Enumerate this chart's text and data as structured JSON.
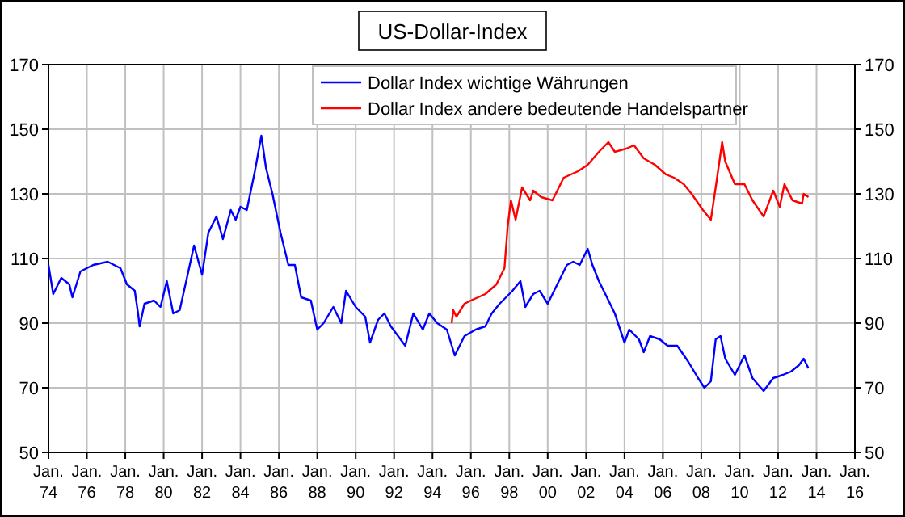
{
  "chart_data": {
    "type": "line",
    "title": "US-Dollar-Index",
    "xlim": [
      "1974-01",
      "2016-01"
    ],
    "xticks": [
      {
        "value": "1974-01",
        "label": "Jan. 74"
      },
      {
        "value": "1976-01",
        "label": "Jan. 76"
      },
      {
        "value": "1978-01",
        "label": "Jan. 78"
      },
      {
        "value": "1980-01",
        "label": "Jan. 80"
      },
      {
        "value": "1982-01",
        "label": "Jan. 82"
      },
      {
        "value": "1984-01",
        "label": "Jan. 84"
      },
      {
        "value": "1986-01",
        "label": "Jan. 86"
      },
      {
        "value": "1988-01",
        "label": "Jan. 88"
      },
      {
        "value": "1990-01",
        "label": "Jan. 90"
      },
      {
        "value": "1992-01",
        "label": "Jan. 92"
      },
      {
        "value": "1994-01",
        "label": "Jan. 94"
      },
      {
        "value": "1996-01",
        "label": "Jan. 96"
      },
      {
        "value": "1998-01",
        "label": "Jan. 98"
      },
      {
        "value": "2000-01",
        "label": "Jan. 00"
      },
      {
        "value": "2002-01",
        "label": "Jan. 02"
      },
      {
        "value": "2004-01",
        "label": "Jan. 04"
      },
      {
        "value": "2006-01",
        "label": "Jan. 06"
      },
      {
        "value": "2008-01",
        "label": "Jan. 08"
      },
      {
        "value": "2010-01",
        "label": "Jan. 10"
      },
      {
        "value": "2012-01",
        "label": "Jan. 12"
      },
      {
        "value": "2014-01",
        "label": "Jan. 14"
      },
      {
        "value": "2016-01",
        "label": "Jan. 16"
      }
    ],
    "ylim": [
      50,
      170
    ],
    "yticks": [
      50,
      70,
      90,
      110,
      130,
      150,
      170
    ],
    "y2lim": [
      50,
      170
    ],
    "y2ticks": [
      50,
      70,
      90,
      110,
      130,
      150,
      170
    ],
    "grid": true,
    "legend": "top",
    "marker": "none",
    "line_style": "solid",
    "series": [
      {
        "name": "Dollar Index wichtige Währungen",
        "color": "#0000ff",
        "x": [
          "1974-01",
          "1974-04",
          "1974-09",
          "1975-02",
          "1975-04",
          "1975-09",
          "1976-05",
          "1977-02",
          "1977-10",
          "1978-02",
          "1978-07",
          "1978-09",
          "1978-10",
          "1979-01",
          "1979-07",
          "1979-11",
          "1980-03",
          "1980-07",
          "1980-11",
          "1981-04",
          "1981-08",
          "1982-01",
          "1982-05",
          "1982-10",
          "1983-02",
          "1983-07",
          "1983-10",
          "1984-01",
          "1984-05",
          "1984-10",
          "1985-02",
          "1985-05",
          "1985-09",
          "1986-02",
          "1986-07",
          "1986-11",
          "1987-03",
          "1987-09",
          "1988-01",
          "1988-05",
          "1988-11",
          "1989-04",
          "1989-07",
          "1990-01",
          "1990-07",
          "1990-10",
          "1991-03",
          "1991-07",
          "1991-11",
          "1992-08",
          "1993-01",
          "1993-07",
          "1993-11",
          "1994-04",
          "1994-10",
          "1995-03",
          "1995-09",
          "1996-04",
          "1996-10",
          "1997-02",
          "1997-07",
          "1997-11",
          "1998-03",
          "1998-08",
          "1998-11",
          "1999-04",
          "1999-08",
          "2000-01",
          "2000-04",
          "2000-08",
          "2001-01",
          "2001-05",
          "2001-09",
          "2002-02",
          "2002-05",
          "2002-09",
          "2003-02",
          "2003-07",
          "2004-01",
          "2004-04",
          "2004-10",
          "2005-01",
          "2005-05",
          "2005-11",
          "2006-04",
          "2006-10",
          "2007-05",
          "2007-11",
          "2008-03",
          "2008-07",
          "2008-10",
          "2009-01",
          "2009-04",
          "2009-10",
          "2010-04",
          "2010-09",
          "2011-04",
          "2011-10",
          "2012-04",
          "2012-09",
          "2013-02",
          "2013-05",
          "2013-08"
        ],
        "values": [
          108,
          99,
          104,
          102,
          98,
          106,
          108,
          109,
          107,
          102,
          100,
          93,
          89,
          96,
          97,
          95,
          103,
          93,
          94,
          105,
          114,
          105,
          118,
          123,
          116,
          125,
          122,
          126,
          125,
          137,
          148,
          138,
          130,
          118,
          108,
          108,
          98,
          97,
          88,
          90,
          95,
          90,
          100,
          95,
          92,
          84,
          91,
          93,
          89,
          83,
          93,
          88,
          93,
          90,
          88,
          80,
          86,
          88,
          89,
          93,
          96,
          98,
          100,
          103,
          95,
          99,
          100,
          96,
          99,
          103,
          108,
          109,
          108,
          113,
          108,
          103,
          98,
          93,
          84,
          88,
          85,
          81,
          86,
          85,
          83,
          83,
          78,
          73,
          70,
          72,
          85,
          86,
          79,
          74,
          80,
          73,
          69,
          73,
          74,
          75,
          77,
          79,
          76
        ]
      },
      {
        "name": "Dollar Index andere bedeutende Handelspartner",
        "color": "#ff0000",
        "x": [
          "1995-01",
          "1995-02",
          "1995-04",
          "1995-09",
          "1996-01",
          "1996-10",
          "1997-05",
          "1997-10",
          "1997-12",
          "1998-02",
          "1998-05",
          "1998-09",
          "1999-02",
          "1999-04",
          "1999-09",
          "2000-04",
          "2000-11",
          "2001-08",
          "2002-02",
          "2002-09",
          "2003-03",
          "2003-07",
          "2004-02",
          "2004-07",
          "2005-01",
          "2005-08",
          "2006-03",
          "2006-08",
          "2007-02",
          "2007-07",
          "2008-02",
          "2008-07",
          "2008-10",
          "2009-02",
          "2009-04",
          "2009-10",
          "2010-04",
          "2010-09",
          "2011-04",
          "2011-10",
          "2012-02",
          "2012-05",
          "2012-10",
          "2013-04",
          "2013-05",
          "2013-08"
        ],
        "values": [
          90,
          94,
          92,
          96,
          97,
          99,
          102,
          107,
          120,
          128,
          122,
          132,
          128,
          131,
          129,
          128,
          135,
          137,
          139,
          143,
          146,
          143,
          144,
          145,
          141,
          139,
          136,
          135,
          133,
          130,
          125,
          122,
          132,
          146,
          140,
          133,
          133,
          128,
          123,
          131,
          126,
          133,
          128,
          127,
          130,
          129
        ]
      }
    ]
  }
}
